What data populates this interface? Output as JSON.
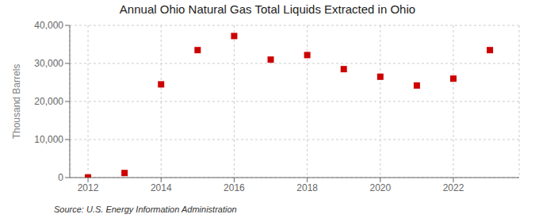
{
  "chart_data": {
    "type": "scatter",
    "title": "Annual Ohio Natural Gas Total Liquids Extracted in Ohio",
    "ylabel": "Thousand Barrels",
    "source": "Source: U.S. Energy Information Administration",
    "x": [
      2012,
      2013,
      2014,
      2015,
      2016,
      2017,
      2018,
      2019,
      2020,
      2021,
      2022,
      2023
    ],
    "values": [
      50,
      1200,
      24500,
      33500,
      37200,
      31000,
      32200,
      28500,
      26500,
      24200,
      26000,
      33500
    ],
    "color": "#cc0000",
    "marker": "square",
    "xlim": [
      2011.5,
      2023.8
    ],
    "xticks": [
      2012,
      2014,
      2016,
      2018,
      2020,
      2022
    ],
    "ylim": [
      0,
      40000
    ],
    "yticks": [
      0,
      {
        "value": 10000,
        "label": "10,000"
      },
      {
        "value": 20000,
        "label": "20,000"
      },
      {
        "value": 30000,
        "label": "30,000"
      },
      {
        "value": 40000,
        "label": "40,000"
      }
    ],
    "grid": true
  }
}
